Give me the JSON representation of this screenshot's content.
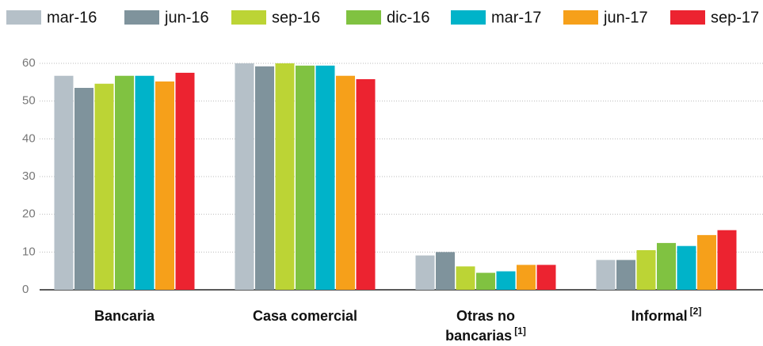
{
  "chart_data": {
    "type": "bar",
    "categories": [
      "Bancaria",
      "Casa comercial",
      "Otras no bancarias",
      "Informal"
    ],
    "category_notes": [
      null,
      null,
      "[1]",
      "[2]"
    ],
    "series": [
      {
        "name": "mar-16",
        "color": "#b5c0c8",
        "values": [
          56.7,
          60,
          9.1,
          7.9
        ]
      },
      {
        "name": "jun-16",
        "color": "#7f939c",
        "values": [
          53.5,
          59.2,
          10,
          7.9
        ]
      },
      {
        "name": "sep-16",
        "color": "#bcd435",
        "values": [
          54.6,
          60,
          6.2,
          10.5
        ]
      },
      {
        "name": "dic-16",
        "color": "#80c241",
        "values": [
          56.7,
          59.4,
          4.5,
          12.4
        ]
      },
      {
        "name": "mar-17",
        "color": "#00b3c9",
        "values": [
          56.7,
          59.4,
          4.9,
          11.6
        ]
      },
      {
        "name": "jun-17",
        "color": "#f6a01a",
        "values": [
          55.2,
          56.7,
          6.6,
          14.5
        ]
      },
      {
        "name": "sep-17",
        "color": "#ec2330",
        "values": [
          57.5,
          55.8,
          6.6,
          15.8
        ]
      }
    ],
    "ylim": [
      0,
      60
    ],
    "yticks": [
      0,
      10,
      20,
      30,
      40,
      50,
      60
    ],
    "grid": true,
    "legend": "top"
  }
}
